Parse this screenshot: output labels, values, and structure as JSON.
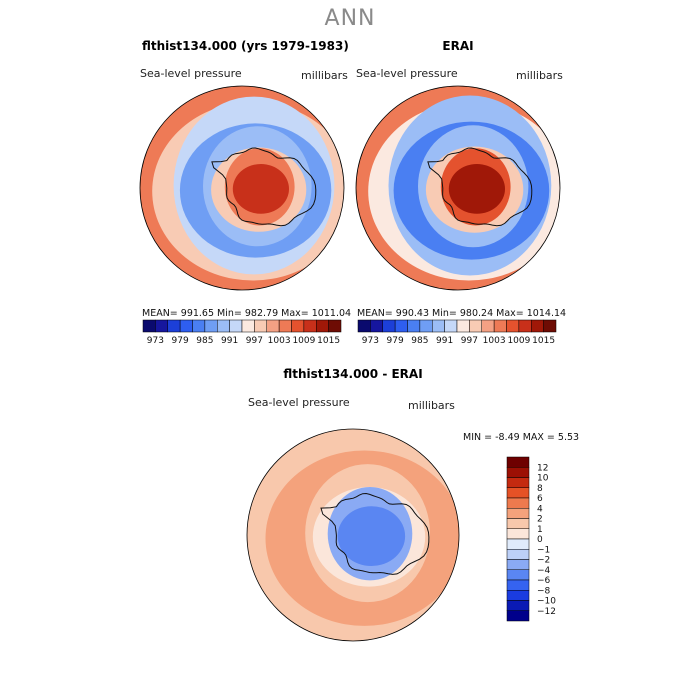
{
  "season_title": "ANN",
  "panels": [
    {
      "title": "flthist134.000 (yrs 1979-1983)",
      "variable_label": "Sea-level pressure",
      "units_label": "millibars",
      "stats": {
        "mean": "991.65",
        "min": "982.79",
        "max": "1011.04",
        "text": "MEAN= 991.65   Min= 982.79   Max= 1011.04"
      },
      "colorbar_ticks": [
        "973",
        "979",
        "985",
        "991",
        "997",
        "1003",
        "1009",
        "1015"
      ]
    },
    {
      "title": "ERAI",
      "variable_label": "Sea-level pressure",
      "units_label": "millibars",
      "stats": {
        "mean": "990.43",
        "min": "980.24",
        "max": "1014.14",
        "text": "MEAN= 990.43   Min= 980.24   Max= 1014.14"
      },
      "colorbar_ticks": [
        "973",
        "979",
        "985",
        "991",
        "997",
        "1003",
        "1009",
        "1015"
      ]
    },
    {
      "title": "flthist134.000 - ERAI",
      "variable_label": "Sea-level pressure",
      "units_label": "millibars",
      "stats": {
        "min": "-8.49",
        "max": "5.53",
        "text": "MIN =   -8.49  MAX =    5.53"
      },
      "colorbar_ticks": [
        "12",
        "10",
        "8",
        "6",
        "4",
        "2",
        "1",
        "0",
        "−1",
        "−2",
        "−4",
        "−6",
        "−8",
        "−10",
        "−12"
      ]
    }
  ],
  "chart_data": [
    {
      "type": "heatmap",
      "projection": "south-polar stereographic",
      "title": "flthist134.000 (yrs 1979-1983)",
      "variable": "Sea-level pressure",
      "units": "millibars",
      "mean": 991.65,
      "min": 982.79,
      "max": 1011.04,
      "levels": [
        973,
        976,
        979,
        982,
        985,
        988,
        991,
        994,
        997,
        1000,
        1003,
        1006,
        1009,
        1012,
        1015
      ],
      "colors": [
        "#0a0a6e",
        "#16169e",
        "#1c3fd8",
        "#2e5ef0",
        "#4a7ff2",
        "#6f9ef4",
        "#9bbdf6",
        "#c5d8f8",
        "#fbe9e0",
        "#f8cbb4",
        "#f4a184",
        "#ee7a56",
        "#e4522e",
        "#c8301a",
        "#a01808",
        "#6e0c04"
      ],
      "rings": [
        {
          "r": 1.0,
          "value": 1003
        },
        {
          "r": 0.93,
          "value": 997
        },
        {
          "r": 0.83,
          "value": 991
        },
        {
          "r": 0.7,
          "value": 985
        },
        {
          "r": 0.56,
          "value": 988
        },
        {
          "r": 0.44,
          "value": 997
        },
        {
          "r": 0.36,
          "value": 1003
        },
        {
          "r": 0.26,
          "value": 1009
        }
      ]
    },
    {
      "type": "heatmap",
      "projection": "south-polar stereographic",
      "title": "ERAI",
      "variable": "Sea-level pressure",
      "units": "millibars",
      "mean": 990.43,
      "min": 980.24,
      "max": 1014.14,
      "levels": [
        973,
        976,
        979,
        982,
        985,
        988,
        991,
        994,
        997,
        1000,
        1003,
        1006,
        1009,
        1012,
        1015
      ],
      "colors": [
        "#0a0a6e",
        "#16169e",
        "#1c3fd8",
        "#2e5ef0",
        "#4a7ff2",
        "#6f9ef4",
        "#9bbdf6",
        "#c5d8f8",
        "#fbe9e0",
        "#f8cbb4",
        "#f4a184",
        "#ee7a56",
        "#e4522e",
        "#c8301a",
        "#a01808",
        "#6e0c04"
      ],
      "rings": [
        {
          "r": 1.0,
          "value": 1003
        },
        {
          "r": 0.93,
          "value": 994
        },
        {
          "r": 0.84,
          "value": 988
        },
        {
          "r": 0.72,
          "value": 982
        },
        {
          "r": 0.57,
          "value": 988
        },
        {
          "r": 0.45,
          "value": 997
        },
        {
          "r": 0.36,
          "value": 1006
        },
        {
          "r": 0.26,
          "value": 1012
        }
      ]
    },
    {
      "type": "heatmap",
      "projection": "south-polar stereographic",
      "title": "flthist134.000 - ERAI",
      "variable": "Sea-level pressure",
      "units": "millibars",
      "min": -8.49,
      "max": 5.53,
      "levels": [
        -12,
        -10,
        -8,
        -6,
        -4,
        -2,
        -1,
        0,
        1,
        2,
        4,
        6,
        8,
        10,
        12
      ],
      "colors": [
        "#00008b",
        "#0a1ab4",
        "#1a3ce0",
        "#3563f0",
        "#5a86f2",
        "#8aaaf4",
        "#bcd0f8",
        "#e0ebfb",
        "#fbe6da",
        "#f8c8ac",
        "#f4a27c",
        "#ee7a4e",
        "#e55226",
        "#c42a10",
        "#9c1004",
        "#6e0000"
      ],
      "rings": [
        {
          "r": 1.0,
          "value": 1.5
        },
        {
          "r": 0.88,
          "value": 3
        },
        {
          "r": 0.62,
          "value": 1.5
        },
        {
          "r": 0.5,
          "value": 0.5
        },
        {
          "r": 0.42,
          "value": -3
        },
        {
          "r": 0.3,
          "value": -5
        }
      ]
    }
  ]
}
